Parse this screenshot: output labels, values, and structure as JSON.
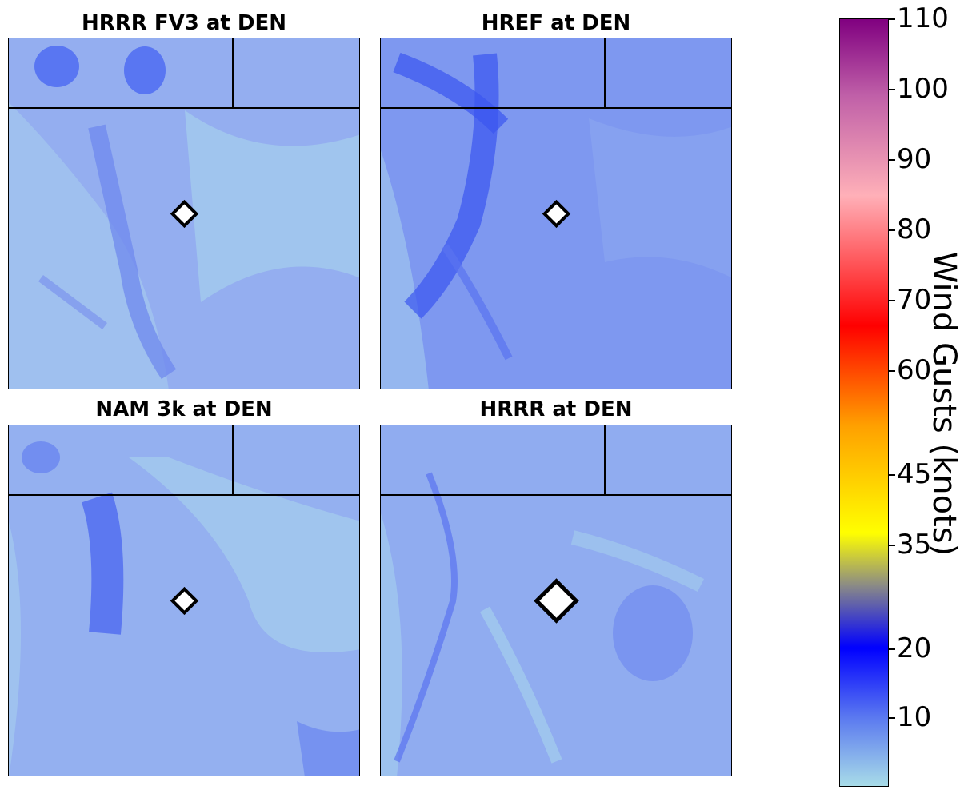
{
  "panels": [
    {
      "title": "HRRR FV3 at DEN",
      "marker": "small"
    },
    {
      "title": "HREF at DEN",
      "marker": "small"
    },
    {
      "title": "NAM 3k at DEN",
      "marker": "small"
    },
    {
      "title": "HRRR at DEN",
      "marker": "large"
    }
  ],
  "colorbar": {
    "title": "Wind Gusts (knots)",
    "ticks": [
      "110",
      "100",
      "90",
      "80",
      "70",
      "60",
      "45",
      "35",
      "20",
      "10"
    ],
    "colors": [
      "#a8dce8",
      "#5a78f0",
      "#0000ff",
      "#888888",
      "#ffff00",
      "#ffa000",
      "#ff0000",
      "#ffb0b8",
      "#c060a8",
      "#800080"
    ]
  },
  "colors": {
    "map_base": "#8fa8f0",
    "map_light": "#a8d4ec",
    "map_dark": "#3a55f0",
    "border": "#000000",
    "station_fill": "#ffffff"
  }
}
